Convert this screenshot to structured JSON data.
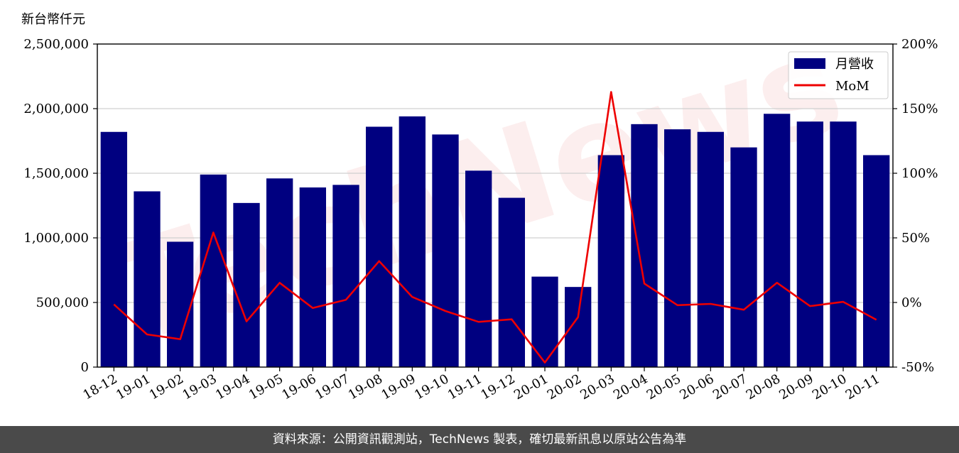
{
  "chart_data": {
    "type": "bar",
    "unit_label": "新台幣仟元",
    "categories": [
      "18-12",
      "19-01",
      "19-02",
      "19-03",
      "19-04",
      "19-05",
      "19-06",
      "19-07",
      "19-08",
      "19-09",
      "19-10",
      "19-11",
      "19-12",
      "20-01",
      "20-02",
      "20-03",
      "20-04",
      "20-05",
      "20-06",
      "20-07",
      "20-08",
      "20-09",
      "20-10",
      "20-11"
    ],
    "series": [
      {
        "name": "月營收",
        "type": "bar",
        "axis": "left",
        "color": "#000080",
        "values": [
          1820000,
          1360000,
          970000,
          1490000,
          1270000,
          1460000,
          1390000,
          1410000,
          1860000,
          1940000,
          1800000,
          1520000,
          1310000,
          700000,
          620000,
          1640000,
          1880000,
          1840000,
          1820000,
          1700000,
          1960000,
          1900000,
          1900000,
          1640000
        ]
      },
      {
        "name": "MoM",
        "type": "line",
        "axis": "right",
        "color": "#ee0000",
        "values": [
          -1.5,
          -24.7,
          -28.4,
          54.1,
          -14.6,
          15.2,
          -4.3,
          2.1,
          32.0,
          4.3,
          -6.6,
          -15.0,
          -13.0,
          -46.5,
          -11.4,
          162.9,
          14.6,
          -2.1,
          -1.1,
          -5.6,
          15.3,
          -2.8,
          0.5,
          -13.4
        ]
      }
    ],
    "left_axis": {
      "ylim": [
        0,
        2500000
      ],
      "ticks": [
        0,
        500000,
        1000000,
        1500000,
        2000000,
        2500000
      ],
      "tick_labels": [
        "0",
        "500,000",
        "1,000,000",
        "1,500,000",
        "2,000,000",
        "2,500,000"
      ]
    },
    "right_axis": {
      "ylim": [
        -50,
        200
      ],
      "ticks": [
        -50,
        0,
        50,
        100,
        150,
        200
      ],
      "tick_labels": [
        "-50%",
        "0%",
        "50%",
        "100%",
        "150%",
        "200%"
      ]
    },
    "grid": true,
    "legend_position": "top-right",
    "watermark": "TechNews"
  },
  "footer": {
    "text": "資料來源：公開資訊觀測站，TechNews 製表，確切最新訊息以原站公告為準"
  }
}
